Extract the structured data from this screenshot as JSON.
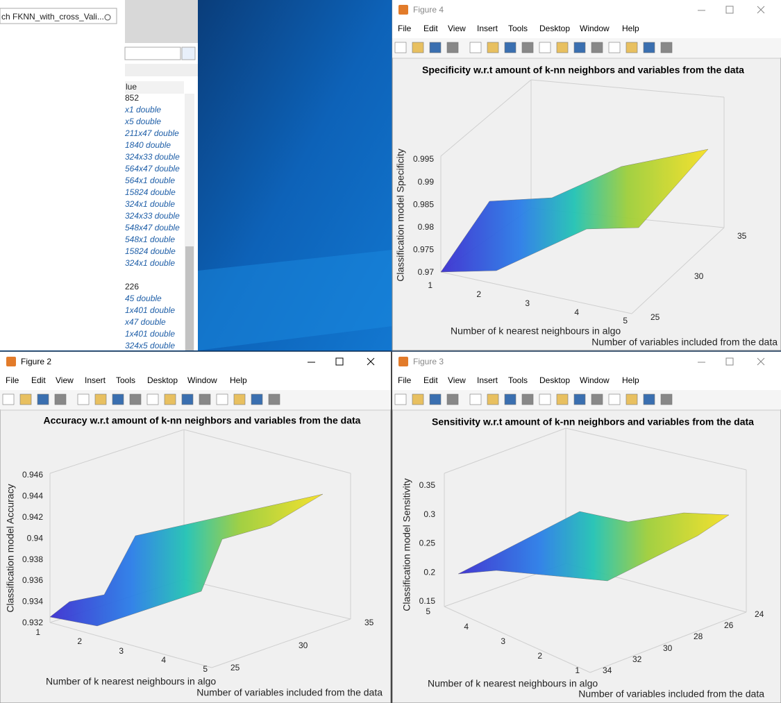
{
  "workspace": {
    "search": "ch FKNN_with_cross_Vali...",
    "column_header": "lue",
    "values": [
      "852",
      "x1 double",
      "x5 double",
      "211x47 double",
      "1840 double",
      "324x33 double",
      "564x47 double",
      "564x1 double",
      "15824 double",
      "324x1 double",
      "324x33 double",
      "548x47 double",
      "548x1 double",
      "15824 double",
      "324x1 double",
      "226",
      "45 double",
      "1x401 double",
      "x47 double",
      "1x401 double",
      "324x5 double"
    ]
  },
  "figures": [
    {
      "window_title": "Figure 4",
      "menu": [
        "File",
        "Edit",
        "View",
        "Insert",
        "Tools",
        "Desktop",
        "Window",
        "Help"
      ],
      "axes": {
        "title": "Specificity w.r.t amount of k-nn neighbors and variables from the data",
        "z_label": "Classification model Specificity",
        "x_label": "Number of k nearest neighbours in algo",
        "y_label": "Number of variables included from the data",
        "z_ticks": [
          "0.995",
          "0.99",
          "0.985",
          "0.98",
          "0.975",
          "0.97"
        ],
        "x_ticks": [
          "1",
          "2",
          "3",
          "4",
          "5"
        ],
        "y_ticks": [
          "25",
          "30",
          "35"
        ]
      }
    },
    {
      "window_title": "Figure 2",
      "menu": [
        "File",
        "Edit",
        "View",
        "Insert",
        "Tools",
        "Desktop",
        "Window",
        "Help"
      ],
      "axes": {
        "title": "Accuracy w.r.t amount of k-nn neighbors and variables from the data",
        "z_label": "Classification model Accuracy",
        "x_label": "Number of k nearest neighbours in algo",
        "y_label": "Number of variables included from the data",
        "z_ticks": [
          "0.946",
          "0.944",
          "0.942",
          "0.94",
          "0.938",
          "0.936",
          "0.934",
          "0.932"
        ],
        "x_ticks": [
          "1",
          "2",
          "3",
          "4",
          "5"
        ],
        "y_ticks": [
          "25",
          "30",
          "35"
        ]
      }
    },
    {
      "window_title": "Figure 3",
      "menu": [
        "File",
        "Edit",
        "View",
        "Insert",
        "Tools",
        "Desktop",
        "Window",
        "Help"
      ],
      "axes": {
        "title": "Sensitivity w.r.t amount of k-nn neighbors and variables from the data",
        "z_label": "Classification model Sensitivity",
        "x_label": "Number of k nearest neighbours in algo",
        "y_label": "Number of variables included from the data",
        "z_ticks": [
          "0.35",
          "0.3",
          "0.25",
          "0.2",
          "0.15"
        ],
        "x_ticks": [
          "5",
          "4",
          "3",
          "2",
          "1"
        ],
        "y_ticks": [
          "34",
          "32",
          "30",
          "28",
          "26",
          "24"
        ]
      }
    }
  ]
}
